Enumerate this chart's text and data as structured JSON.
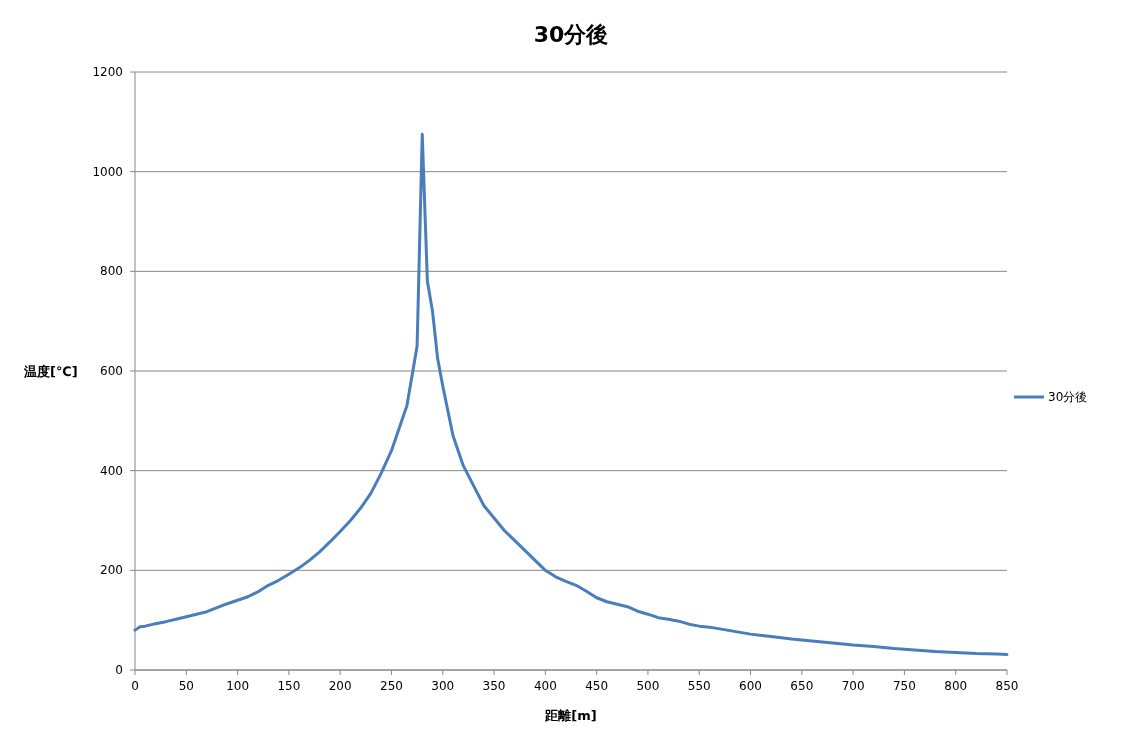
{
  "chart_data": {
    "type": "line",
    "title": "30分後",
    "xlabel": "距離[m]",
    "ylabel": "温度[℃]",
    "x": [
      0,
      5,
      10,
      20,
      30,
      40,
      50,
      60,
      70,
      80,
      90,
      100,
      110,
      120,
      130,
      140,
      150,
      160,
      170,
      180,
      190,
      200,
      210,
      220,
      230,
      240,
      250,
      260,
      265,
      275,
      280,
      285,
      290,
      295,
      300,
      305,
      310,
      320,
      330,
      340,
      350,
      360,
      370,
      380,
      390,
      400,
      410,
      420,
      430,
      440,
      450,
      460,
      470,
      480,
      490,
      500,
      510,
      520,
      530,
      540,
      550,
      560,
      580,
      600,
      620,
      640,
      660,
      680,
      700,
      720,
      740,
      760,
      780,
      800,
      820,
      840,
      850
    ],
    "series": [
      {
        "name": "30分後",
        "color": "#4a7ebb",
        "values": [
          80,
          87,
          88,
          93,
          97,
          102,
          107,
          112,
          117,
          125,
          133,
          140,
          147,
          157,
          170,
          180,
          192,
          205,
          220,
          237,
          257,
          278,
          300,
          325,
          355,
          395,
          440,
          500,
          530,
          650,
          1075,
          780,
          720,
          625,
          570,
          520,
          470,
          410,
          370,
          330,
          305,
          280,
          260,
          240,
          220,
          200,
          187,
          178,
          170,
          158,
          145,
          137,
          132,
          127,
          118,
          112,
          105,
          102,
          98,
          92,
          88,
          86,
          79,
          72,
          67,
          62,
          58,
          54,
          50,
          47,
          43,
          40,
          37,
          35,
          33,
          32,
          31
        ]
      }
    ],
    "xlim": [
      0,
      850
    ],
    "ylim": [
      0,
      1200
    ],
    "xticks": [
      0,
      50,
      100,
      150,
      200,
      250,
      300,
      350,
      400,
      450,
      500,
      550,
      600,
      650,
      700,
      750,
      800,
      850
    ],
    "yticks": [
      0,
      200,
      400,
      600,
      800,
      1000,
      1200
    ],
    "grid": "y",
    "legend": "right"
  }
}
